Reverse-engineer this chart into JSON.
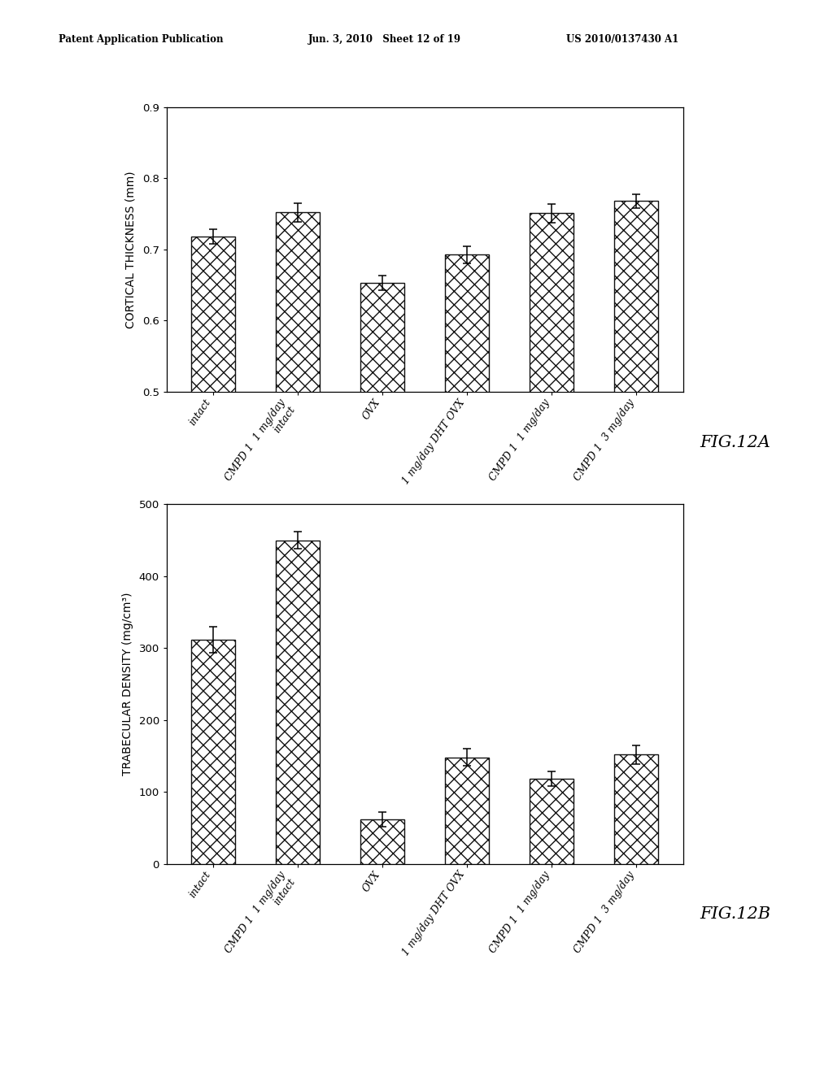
{
  "header_left": "Patent Application Publication",
  "header_mid": "Jun. 3, 2010   Sheet 12 of 19",
  "header_right": "US 2010/0137430 A1",
  "fig_a": {
    "ylabel": "CORTICAL THICKNESS (mm)",
    "ylim": [
      0.5,
      0.9
    ],
    "yticks": [
      0.5,
      0.6,
      0.7,
      0.8,
      0.9
    ],
    "tick_labels": [
      "intact",
      "CMPD 1  1 mg/day\nintact",
      "OVX",
      "1 mg/day DHT OVX",
      "CMPD 1  1 mg/day",
      "CMPD 1  3 mg/day"
    ],
    "values": [
      0.718,
      0.752,
      0.653,
      0.693,
      0.751,
      0.768
    ],
    "errors": [
      0.01,
      0.013,
      0.01,
      0.012,
      0.013,
      0.01
    ],
    "fig_label": "FIG.12A"
  },
  "fig_b": {
    "ylabel": "TRABECULAR DENSITY (mg/cm³)",
    "ylim": [
      0,
      500
    ],
    "yticks": [
      0,
      100,
      200,
      300,
      400,
      500
    ],
    "tick_labels": [
      "intact",
      "CMPD 1  1 mg/day\nintact",
      "OVX",
      "1 mg/day DHT OVX",
      "CMPD 1  1 mg/day",
      "CMPD 1  3 mg/day"
    ],
    "values": [
      312,
      450,
      62,
      148,
      118,
      152
    ],
    "errors": [
      18,
      12,
      10,
      12,
      10,
      13
    ],
    "fig_label": "FIG.12B"
  },
  "bar_color": "white",
  "bar_edgecolor": "#111111",
  "hatch_pattern": "xx",
  "background_color": "white",
  "axis_label_fontsize": 10,
  "tick_label_fontsize": 9,
  "fig_label_fontsize": 15,
  "header_fontsize": 8.5
}
